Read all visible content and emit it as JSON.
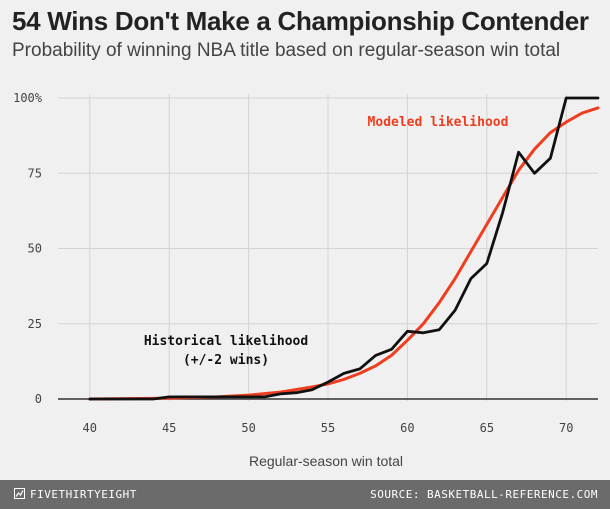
{
  "title": "54 Wins Don't Make a Championship Contender",
  "subtitle": "Probability of winning NBA title based on regular-season win total",
  "footer": {
    "brand": "FIVETHIRTYEIGHT",
    "source": "SOURCE: BASKETBALL-REFERENCE.COM"
  },
  "chart_data": {
    "type": "line",
    "xlabel": "Regular-season win total",
    "ylabel": "",
    "xlim": [
      38,
      72
    ],
    "ylim": [
      0,
      100
    ],
    "x_ticks": [
      40,
      45,
      50,
      55,
      60,
      65,
      70
    ],
    "y_ticks": [
      0,
      25,
      50,
      75,
      100
    ],
    "y_tick_labels": [
      "0",
      "25",
      "50",
      "75",
      "100%"
    ],
    "grid": true,
    "series": [
      {
        "name": "Modeled likelihood",
        "color": "#ee3e1f",
        "x": [
          40,
          44,
          45,
          48,
          50,
          52,
          54,
          55,
          56,
          57,
          58,
          59,
          60,
          61,
          62,
          63,
          64,
          65,
          66,
          67,
          68,
          69,
          70,
          71,
          72
        ],
        "y": [
          0,
          0.2,
          0.3,
          0.7,
          1.3,
          2.3,
          4,
          5,
          6.5,
          8.5,
          11,
          14.5,
          19.5,
          25,
          32,
          40,
          49,
          58,
          67,
          76,
          83,
          88.5,
          92,
          95,
          96.7
        ]
      },
      {
        "name": "Historical likelihood (+/-2 wins)",
        "color": "#111111",
        "x": [
          40,
          44,
          45,
          48,
          50,
          51,
          52,
          53,
          54,
          55,
          56,
          57,
          58,
          59,
          60,
          61,
          62,
          63,
          64,
          65,
          66,
          67,
          68,
          69,
          70,
          71,
          72
        ],
        "y": [
          0,
          0,
          0.7,
          0.7,
          0.7,
          0.7,
          1.7,
          2.1,
          3.1,
          5.6,
          8.5,
          10,
          14.5,
          16.5,
          22.5,
          22,
          23,
          29.5,
          40,
          45,
          62,
          82,
          75,
          80,
          100,
          100,
          100
        ]
      }
    ],
    "annotations": [
      {
        "lines": [
          "Modeled likelihood"
        ],
        "color": "#ee3e1f"
      },
      {
        "lines": [
          "Historical likelihood",
          "(+/-2 wins)"
        ],
        "color": "#111111"
      }
    ]
  }
}
